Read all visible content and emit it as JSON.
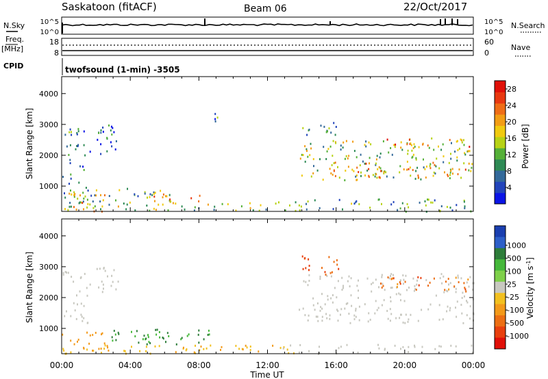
{
  "header": {
    "station": "Saskatoon (fitACF)",
    "beam": "Beam 06",
    "date": "22/Oct/2017"
  },
  "strip_panels": {
    "nsky_label": "N.Sky",
    "nsearch_label": "N.Search",
    "nsky_ticks": [
      "10^5",
      "10^0"
    ],
    "nsearch_ticks": [
      "10^5",
      "10^0"
    ],
    "freq_label": "Freq.",
    "freq_unit": "[MHz]",
    "freq_ticks": [
      "18",
      "8"
    ],
    "nave_label": "Nave",
    "nave_ticks": [
      "60",
      "0"
    ],
    "cpid_label": "CPID",
    "cpid_text": "twofsound (1-min) -3505"
  },
  "chart_data": [
    {
      "type": "heatmap",
      "panel": "power",
      "xlabel": "",
      "ylabel": "Slant Range [km]",
      "x_ticks": [
        "00:00",
        "04:00",
        "08:00",
        "12:00",
        "16:00",
        "20:00",
        "00:00"
      ],
      "y_ticks": [
        "1000",
        "2000",
        "3000",
        "4000"
      ],
      "xlim_hours": [
        0,
        24
      ],
      "ylim_km": [
        180,
        4550
      ],
      "colorbar": {
        "label": "Power [dB]",
        "ticks": [
          "4",
          "8",
          "12",
          "16",
          "20",
          "24",
          "28"
        ],
        "range": [
          0,
          30
        ],
        "colors": [
          "#0a14e6",
          "#2244bb",
          "#33699a",
          "#2e8a55",
          "#55b038",
          "#b7d215",
          "#f0ca0f",
          "#f29d14",
          "#ef6d16",
          "#e83810",
          "#e01008"
        ]
      },
      "regions": [
        {
          "t": [
            0.0,
            1.3
          ],
          "r": [
            1100,
            2900
          ],
          "p": 8
        },
        {
          "t": [
            1.2,
            3.3
          ],
          "r": [
            2000,
            3200
          ],
          "p": 6
        },
        {
          "t": [
            0.0,
            6.5
          ],
          "r": [
            500,
            1000
          ],
          "p": 12
        },
        {
          "t": [
            0.0,
            2.5
          ],
          "r": [
            200,
            800
          ],
          "p": 18
        },
        {
          "t": [
            5.2,
            8.2
          ],
          "r": [
            450,
            800
          ],
          "p": 20
        },
        {
          "t": [
            0.0,
            13.0
          ],
          "r": [
            180,
            520
          ],
          "p": 14
        },
        {
          "t": [
            8.8,
            9.2
          ],
          "r": [
            2900,
            3400
          ],
          "p": 8
        },
        {
          "t": [
            13.8,
            24.0
          ],
          "r": [
            1200,
            2500
          ],
          "p": 14
        },
        {
          "t": [
            15.5,
            24.0
          ],
          "r": [
            1300,
            1800
          ],
          "p": 20
        },
        {
          "t": [
            18.5,
            23.8
          ],
          "r": [
            2200,
            2600
          ],
          "p": 22
        },
        {
          "t": [
            14.0,
            16.2
          ],
          "r": [
            2600,
            3100
          ],
          "p": 10
        },
        {
          "t": [
            12.6,
            24.0
          ],
          "r": [
            180,
            600
          ],
          "p": 10
        }
      ]
    },
    {
      "type": "heatmap",
      "panel": "velocity",
      "xlabel": "Time UT",
      "ylabel": "Slant Range [km]",
      "x_ticks": [
        "00:00",
        "04:00",
        "08:00",
        "12:00",
        "16:00",
        "20:00",
        "00:00"
      ],
      "y_ticks": [
        "1000",
        "2000",
        "3000",
        "4000"
      ],
      "xlim_hours": [
        0,
        24
      ],
      "ylim_km": [
        180,
        4550
      ],
      "colorbar": {
        "label": "Velocity [m s^-1]",
        "ticks": [
          "1000",
          "500",
          "100",
          "25",
          "-25",
          "-100",
          "-500",
          "-1000"
        ],
        "colors": [
          "#1a3fb0",
          "#2d5fc8",
          "#2e7d3a",
          "#45b83a",
          "#7fd04a",
          "#c8c8c0",
          "#f2c020",
          "#f39a1a",
          "#ec6f14",
          "#e8400e",
          "#e01008"
        ]
      },
      "regions": [
        {
          "t": [
            0.0,
            1.5
          ],
          "r": [
            1200,
            2900
          ],
          "v": "ground"
        },
        {
          "t": [
            1.5,
            3.3
          ],
          "r": [
            2100,
            3000
          ],
          "v": "ground"
        },
        {
          "t": [
            0.0,
            2.8
          ],
          "r": [
            300,
            900
          ],
          "v": -200
        },
        {
          "t": [
            2.8,
            8.8
          ],
          "r": [
            500,
            1000
          ],
          "v": 100
        },
        {
          "t": [
            0.0,
            13.5
          ],
          "r": [
            180,
            480
          ],
          "v": -80
        },
        {
          "t": [
            13.8,
            24.0
          ],
          "r": [
            1200,
            2800
          ],
          "v": "ground"
        },
        {
          "t": [
            18.5,
            23.8
          ],
          "r": [
            2200,
            2700
          ],
          "v": -400
        },
        {
          "t": [
            14.0,
            16.5
          ],
          "r": [
            2700,
            3400
          ],
          "v": -500
        },
        {
          "t": [
            12.6,
            24.0
          ],
          "r": [
            180,
            500
          ],
          "v": "ground"
        }
      ]
    }
  ]
}
